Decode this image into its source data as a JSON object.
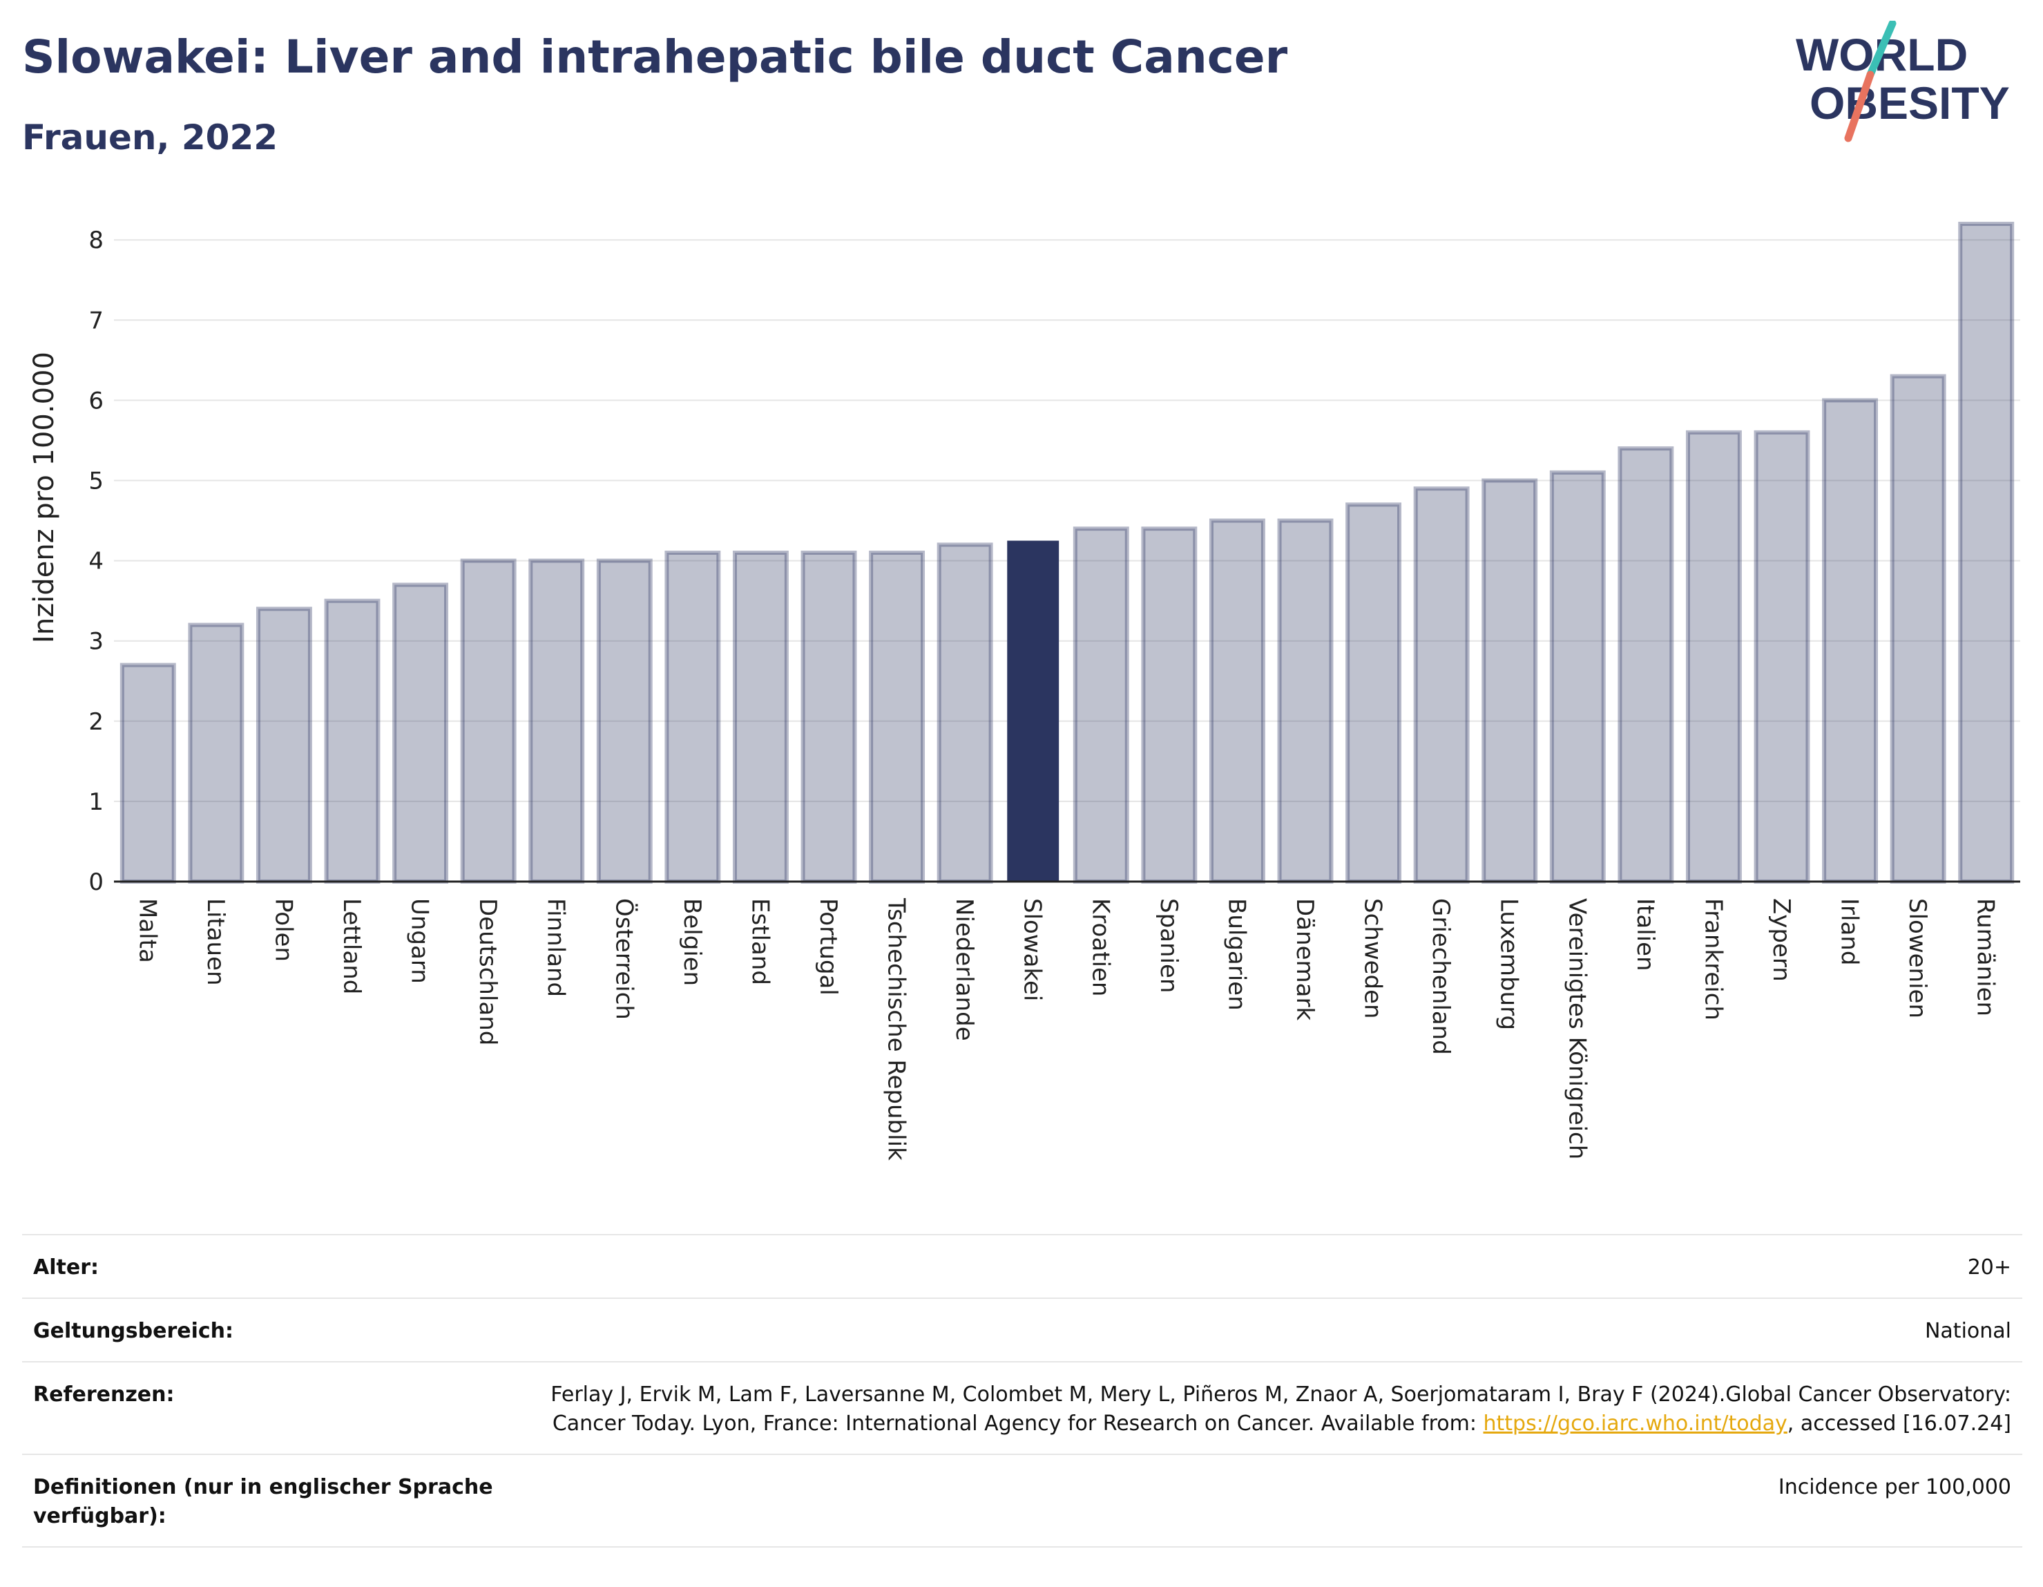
{
  "header": {
    "title": "Slowakei: Liver and intrahepatic bile duct Cancer",
    "subtitle": "Frauen, 2022"
  },
  "logo": {
    "line1": "WORLD",
    "line2": "OBESITY",
    "colors": {
      "text": "#2b3560",
      "slash_top": "#3bbfb5",
      "slash_bottom": "#e8735f"
    }
  },
  "chart_data": {
    "type": "bar",
    "ylabel": "Inzidenz pro 100.000",
    "ylim": [
      0,
      8.5
    ],
    "yticks": [
      0,
      1,
      2,
      3,
      4,
      5,
      6,
      7,
      8
    ],
    "grid": true,
    "highlight": "Slowakei",
    "colors": {
      "bar": "#2b3560",
      "bar_muted": "rgba(43,53,96,0.3)",
      "bar_edge": "rgba(43,53,96,0.35)"
    },
    "categories": [
      "Malta",
      "Litauen",
      "Polen",
      "Lettland",
      "Ungarn",
      "Deutschland",
      "Finnland",
      "Österreich",
      "Belgien",
      "Estland",
      "Portugal",
      "Tschechische Republik",
      "Niederlande",
      "Slowakei",
      "Kroatien",
      "Spanien",
      "Bulgarien",
      "Dänemark",
      "Schweden",
      "Griechenland",
      "Luxemburg",
      "Vereinigtes Königreich",
      "Italien",
      "Frankreich",
      "Zypern",
      "Irland",
      "Slowenien",
      "Rumänien"
    ],
    "values": [
      2.7,
      3.2,
      3.4,
      3.5,
      3.7,
      4.0,
      4.0,
      4.0,
      4.1,
      4.1,
      4.1,
      4.1,
      4.2,
      4.25,
      4.4,
      4.4,
      4.5,
      4.5,
      4.7,
      4.9,
      5.0,
      5.1,
      5.4,
      5.6,
      5.6,
      6.0,
      6.3,
      8.2
    ]
  },
  "meta": {
    "rows": [
      {
        "key": "Alter:",
        "value": "20+"
      },
      {
        "key": "Geltungsbereich:",
        "value": "National"
      },
      {
        "key": "Referenzen:",
        "value_pre": "Ferlay J, Ervik M, Lam F, Laversanne M, Colombet M, Mery L, Piñeros M, Znaor A, Soerjomataram I, Bray F (2024).Global Cancer Observatory: Cancer Today. Lyon, France: International Agency for Research on Cancer. Available from: ",
        "link": "https://gco.iarc.who.int/today",
        "value_post": ", accessed [16.07.24]"
      },
      {
        "key": "Definitionen (nur in englischer Sprache verfügbar):",
        "value": "Incidence per 100,000"
      }
    ]
  }
}
